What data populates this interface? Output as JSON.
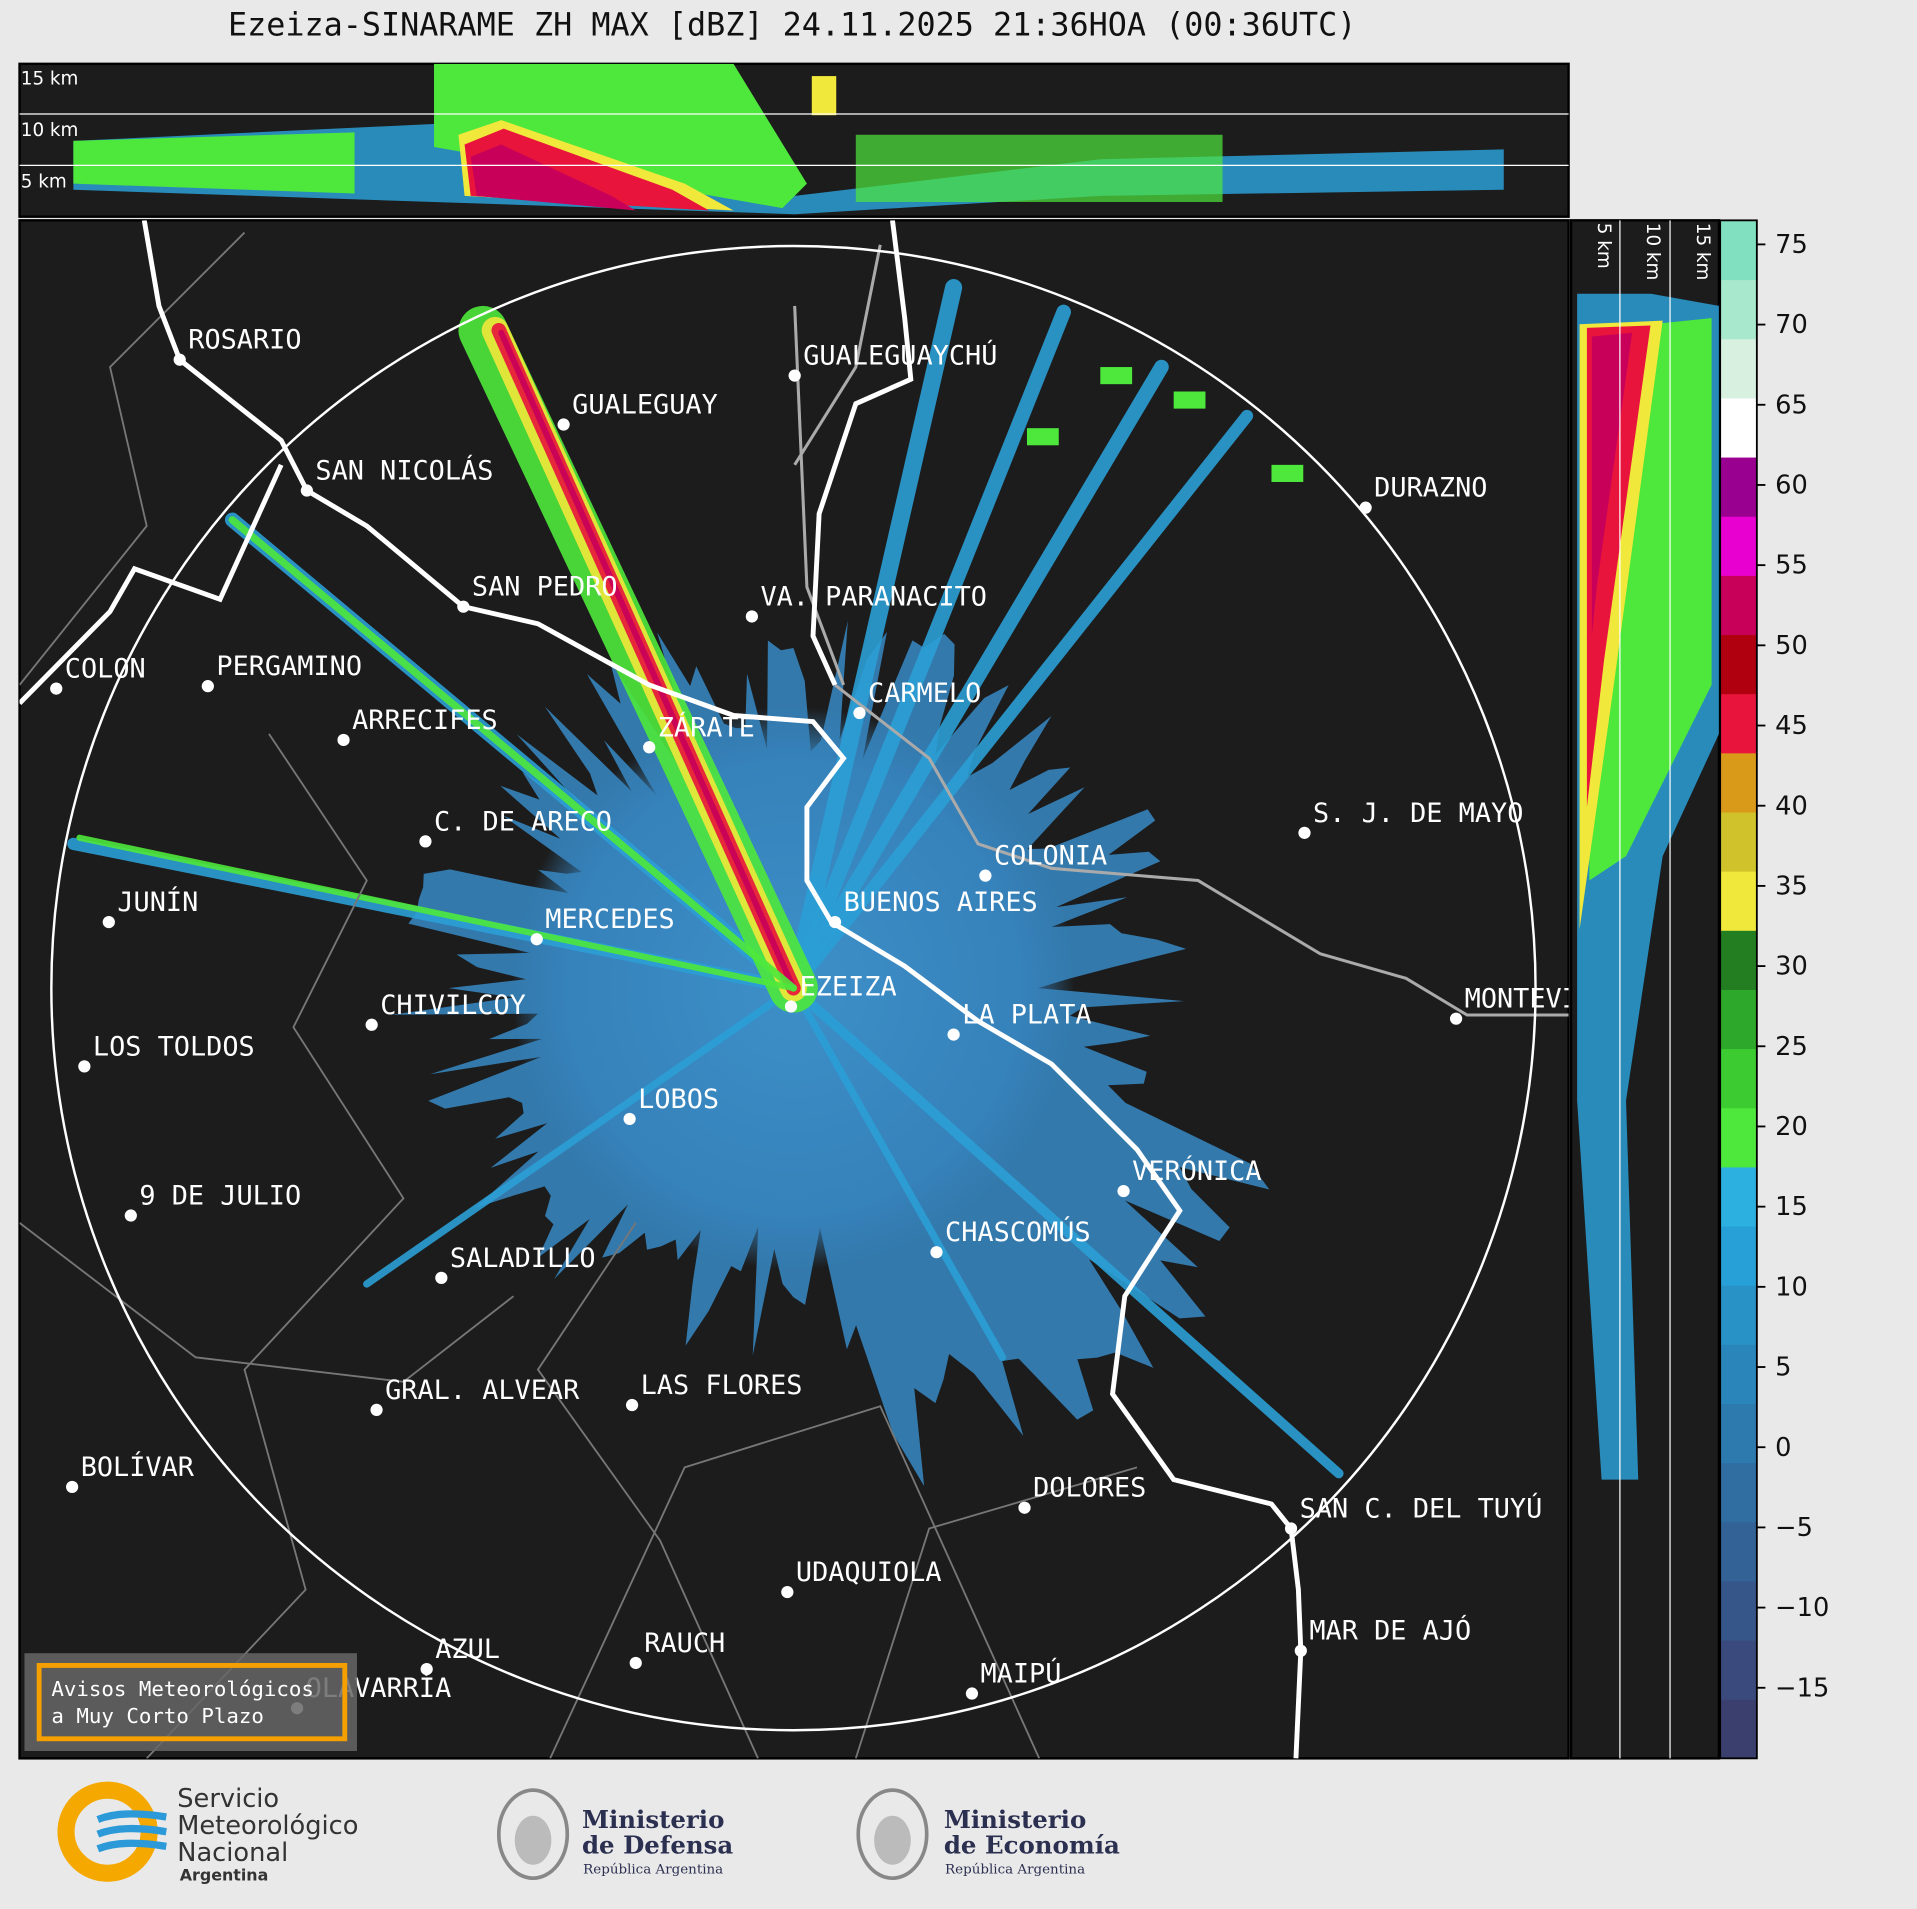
{
  "title": "Ezeiza-SINARAME ZH MAX [dBZ] 24.11.2025 21:36HOA (00:36UTC)",
  "top_panel": {
    "labels": [
      "15 km",
      "10 km",
      "5 km"
    ]
  },
  "side_panel": {
    "labels": [
      "5 km",
      "10 km",
      "15 km"
    ]
  },
  "cities": [
    {
      "label": "ROSARIO"
    },
    {
      "label": "GUALEGUAYCHÚ"
    },
    {
      "label": "GUALEGUAY"
    },
    {
      "label": "SAN NICOLÁS"
    },
    {
      "label": "DURAZNO"
    },
    {
      "label": "SAN PEDRO"
    },
    {
      "label": "VA. PARANACITO"
    },
    {
      "label": "COLON"
    },
    {
      "label": "PERGAMINO"
    },
    {
      "label": "CARMELO"
    },
    {
      "label": "ARRECIFES"
    },
    {
      "label": "ZÁRATE"
    },
    {
      "label": "S. J. DE MAYO"
    },
    {
      "label": "C. DE ARECO"
    },
    {
      "label": "COLONIA"
    },
    {
      "label": "BUENOS AIRES"
    },
    {
      "label": "JUNÍN"
    },
    {
      "label": "MERCEDES"
    },
    {
      "label": "EZEIZA"
    },
    {
      "label": "MONTEVIDEO"
    },
    {
      "label": "CHIVILCOY"
    },
    {
      "label": "LA PLATA"
    },
    {
      "label": "LOS TOLDOS"
    },
    {
      "label": "LOBOS"
    },
    {
      "label": "VERÓNICA"
    },
    {
      "label": "9 DE JULIO"
    },
    {
      "label": "CHASCOMÚS"
    },
    {
      "label": "SALADILLO"
    },
    {
      "label": "GRAL. ALVEAR"
    },
    {
      "label": "LAS FLORES"
    },
    {
      "label": "BOLÍVAR"
    },
    {
      "label": "DOLORES"
    },
    {
      "label": "SAN C. DEL TUYÚ"
    },
    {
      "label": "UDAQUIOLA"
    },
    {
      "label": "MAR DE AJÓ"
    },
    {
      "label": "RAUCH"
    },
    {
      "label": "AZUL"
    },
    {
      "label": "MAIPÚ"
    },
    {
      "label": "OLAVARRÍA"
    }
  ],
  "warning_box": {
    "lines": [
      "Avisos Meteorológicos",
      "a Muy Corto Plazo"
    ]
  },
  "colorbar": {
    "lim": [
      -19.4,
      76.5
    ],
    "ticks": [
      75,
      70,
      65,
      60,
      55,
      50,
      45,
      40,
      35,
      30,
      25,
      20,
      15,
      10,
      5,
      0,
      {
        "value": -5,
        "label": "−5"
      },
      {
        "value": -10,
        "label": "−10"
      },
      {
        "value": -15,
        "label": "−15"
      }
    ],
    "colors": [
      "#3b3f6e",
      "#3a4a7c",
      "#36568a",
      "#336296",
      "#306ea2",
      "#2d7aae",
      "#2a86ba",
      "#2892c6",
      "#26a0d6",
      "#2bb0e0",
      "#4ee83c",
      "#3ccc32",
      "#2ea82a",
      "#237e22",
      "#f0e83a",
      "#cfc22a",
      "#d99a1a",
      "#e8143c",
      "#b00010",
      "#c8005a",
      "#e800d0",
      "#9a0090",
      "#ffffff",
      "#d8f0e0",
      "#a8e8cc",
      "#80e0c0"
    ]
  },
  "logos": {
    "smn": [
      "Servicio",
      "Meteorológico",
      "Nacional",
      "Argentina"
    ],
    "defensa": [
      "Ministerio",
      "de Defensa",
      "República Argentina"
    ],
    "economia": [
      "Ministerio",
      "de Economía",
      "República Argentina"
    ]
  }
}
